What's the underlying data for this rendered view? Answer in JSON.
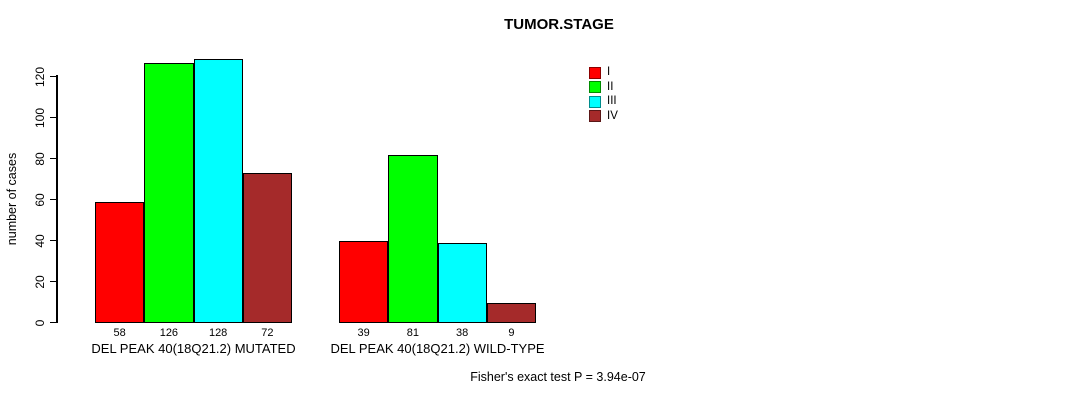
{
  "chart_data": {
    "type": "bar",
    "title": "TUMOR.STAGE",
    "xlabel": "",
    "ylabel": "number of cases",
    "ylim": [
      0,
      128
    ],
    "yticks": [
      0,
      20,
      40,
      60,
      80,
      100,
      120
    ],
    "grid": false,
    "legend_position": "top-right-of-plot",
    "categories": [
      "I",
      "II",
      "III",
      "IV"
    ],
    "colors": [
      "#FF0000",
      "#00FF00",
      "#00FFFF",
      "#A52A2A"
    ],
    "groups": [
      {
        "label": "DEL PEAK 40(18Q21.2) MUTATED",
        "values": [
          58,
          126,
          128,
          72
        ]
      },
      {
        "label": "DEL PEAK 40(18Q21.2) WILD-TYPE",
        "values": [
          39,
          81,
          38,
          9
        ]
      }
    ],
    "legend": [
      {
        "label": "I",
        "color": "#FF0000"
      },
      {
        "label": "II",
        "color": "#00FF00"
      },
      {
        "label": "III",
        "color": "#00FFFF"
      },
      {
        "label": "IV",
        "color": "#A52A2A"
      }
    ],
    "annotation": "Fisher's exact test P = 3.94e-07"
  }
}
